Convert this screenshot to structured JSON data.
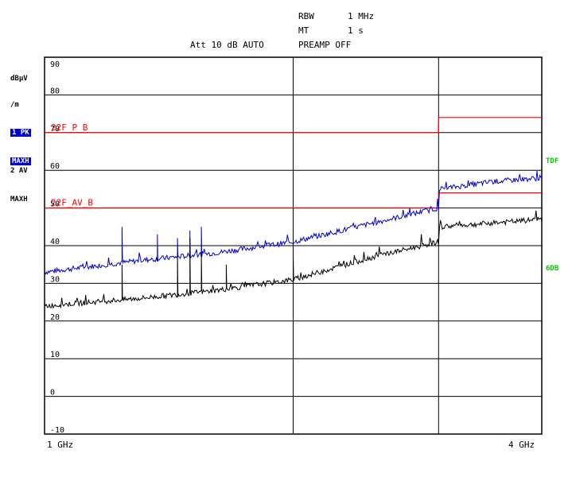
{
  "header": {
    "rbw_label": "RBW",
    "rbw_value": "1 MHz",
    "mt_label": "MT",
    "mt_value": "1 s",
    "att_line": "Att 10 dB AUTO",
    "preamp": "PREAMP OFF"
  },
  "side_panel": {
    "unit_line1": "dBµV",
    "unit_line2": "/m",
    "trace1_line1": "1 PK",
    "trace1_line2": "MAXH",
    "trace2_line1": "2 AV",
    "trace2_line2": "MAXH",
    "tdf": "TDF",
    "sixdb": "6DB"
  },
  "colors": {
    "grid": "#000000",
    "limit": "#ff0000",
    "peak_trace": "#0000cc",
    "avg_trace": "#000000",
    "badge_bg": "#0000cc",
    "side_label": "#00cc00"
  },
  "chart_data": {
    "type": "line",
    "ylabel": "dBµV/m",
    "ylim": [
      -10,
      90
    ],
    "yticks": [
      90,
      80,
      70,
      60,
      50,
      40,
      30,
      20,
      10,
      0,
      -10
    ],
    "xscale": "log",
    "xlim_ghz": [
      1,
      4
    ],
    "x_start_label": "1 GHz",
    "x_end_label": "4 GHz",
    "limit_lines": [
      {
        "name": "22F_P_B",
        "points": [
          [
            1,
            70
          ],
          [
            3,
            70
          ],
          [
            3,
            74
          ],
          [
            4,
            74
          ]
        ]
      },
      {
        "name": "22F_AV_B",
        "points": [
          [
            1,
            50
          ],
          [
            3,
            50
          ],
          [
            3,
            54
          ],
          [
            4,
            54
          ]
        ]
      }
    ],
    "series": [
      {
        "trace": "1 PK MAXH",
        "base": [
          [
            1.0,
            33
          ],
          [
            1.3,
            36
          ],
          [
            1.6,
            38
          ],
          [
            2.0,
            41
          ],
          [
            2.5,
            46
          ],
          [
            3.0,
            50
          ],
          [
            3.005,
            55
          ],
          [
            3.5,
            57
          ],
          [
            4.0,
            58
          ]
        ],
        "spikes": [
          [
            1.24,
            45
          ],
          [
            1.37,
            43
          ],
          [
            1.45,
            42
          ],
          [
            1.5,
            44
          ],
          [
            1.55,
            45
          ]
        ]
      },
      {
        "trace": "2 AV MAXH",
        "base": [
          [
            1.0,
            24
          ],
          [
            1.3,
            26
          ],
          [
            1.6,
            28
          ],
          [
            2.0,
            31
          ],
          [
            2.5,
            37
          ],
          [
            3.0,
            41
          ],
          [
            3.005,
            45
          ],
          [
            3.5,
            46
          ],
          [
            4.0,
            47
          ]
        ],
        "spikes": [
          [
            1.24,
            35
          ],
          [
            1.45,
            38
          ],
          [
            1.5,
            42
          ],
          [
            1.55,
            38
          ],
          [
            1.66,
            35
          ],
          [
            2.0,
            38
          ]
        ]
      }
    ]
  }
}
